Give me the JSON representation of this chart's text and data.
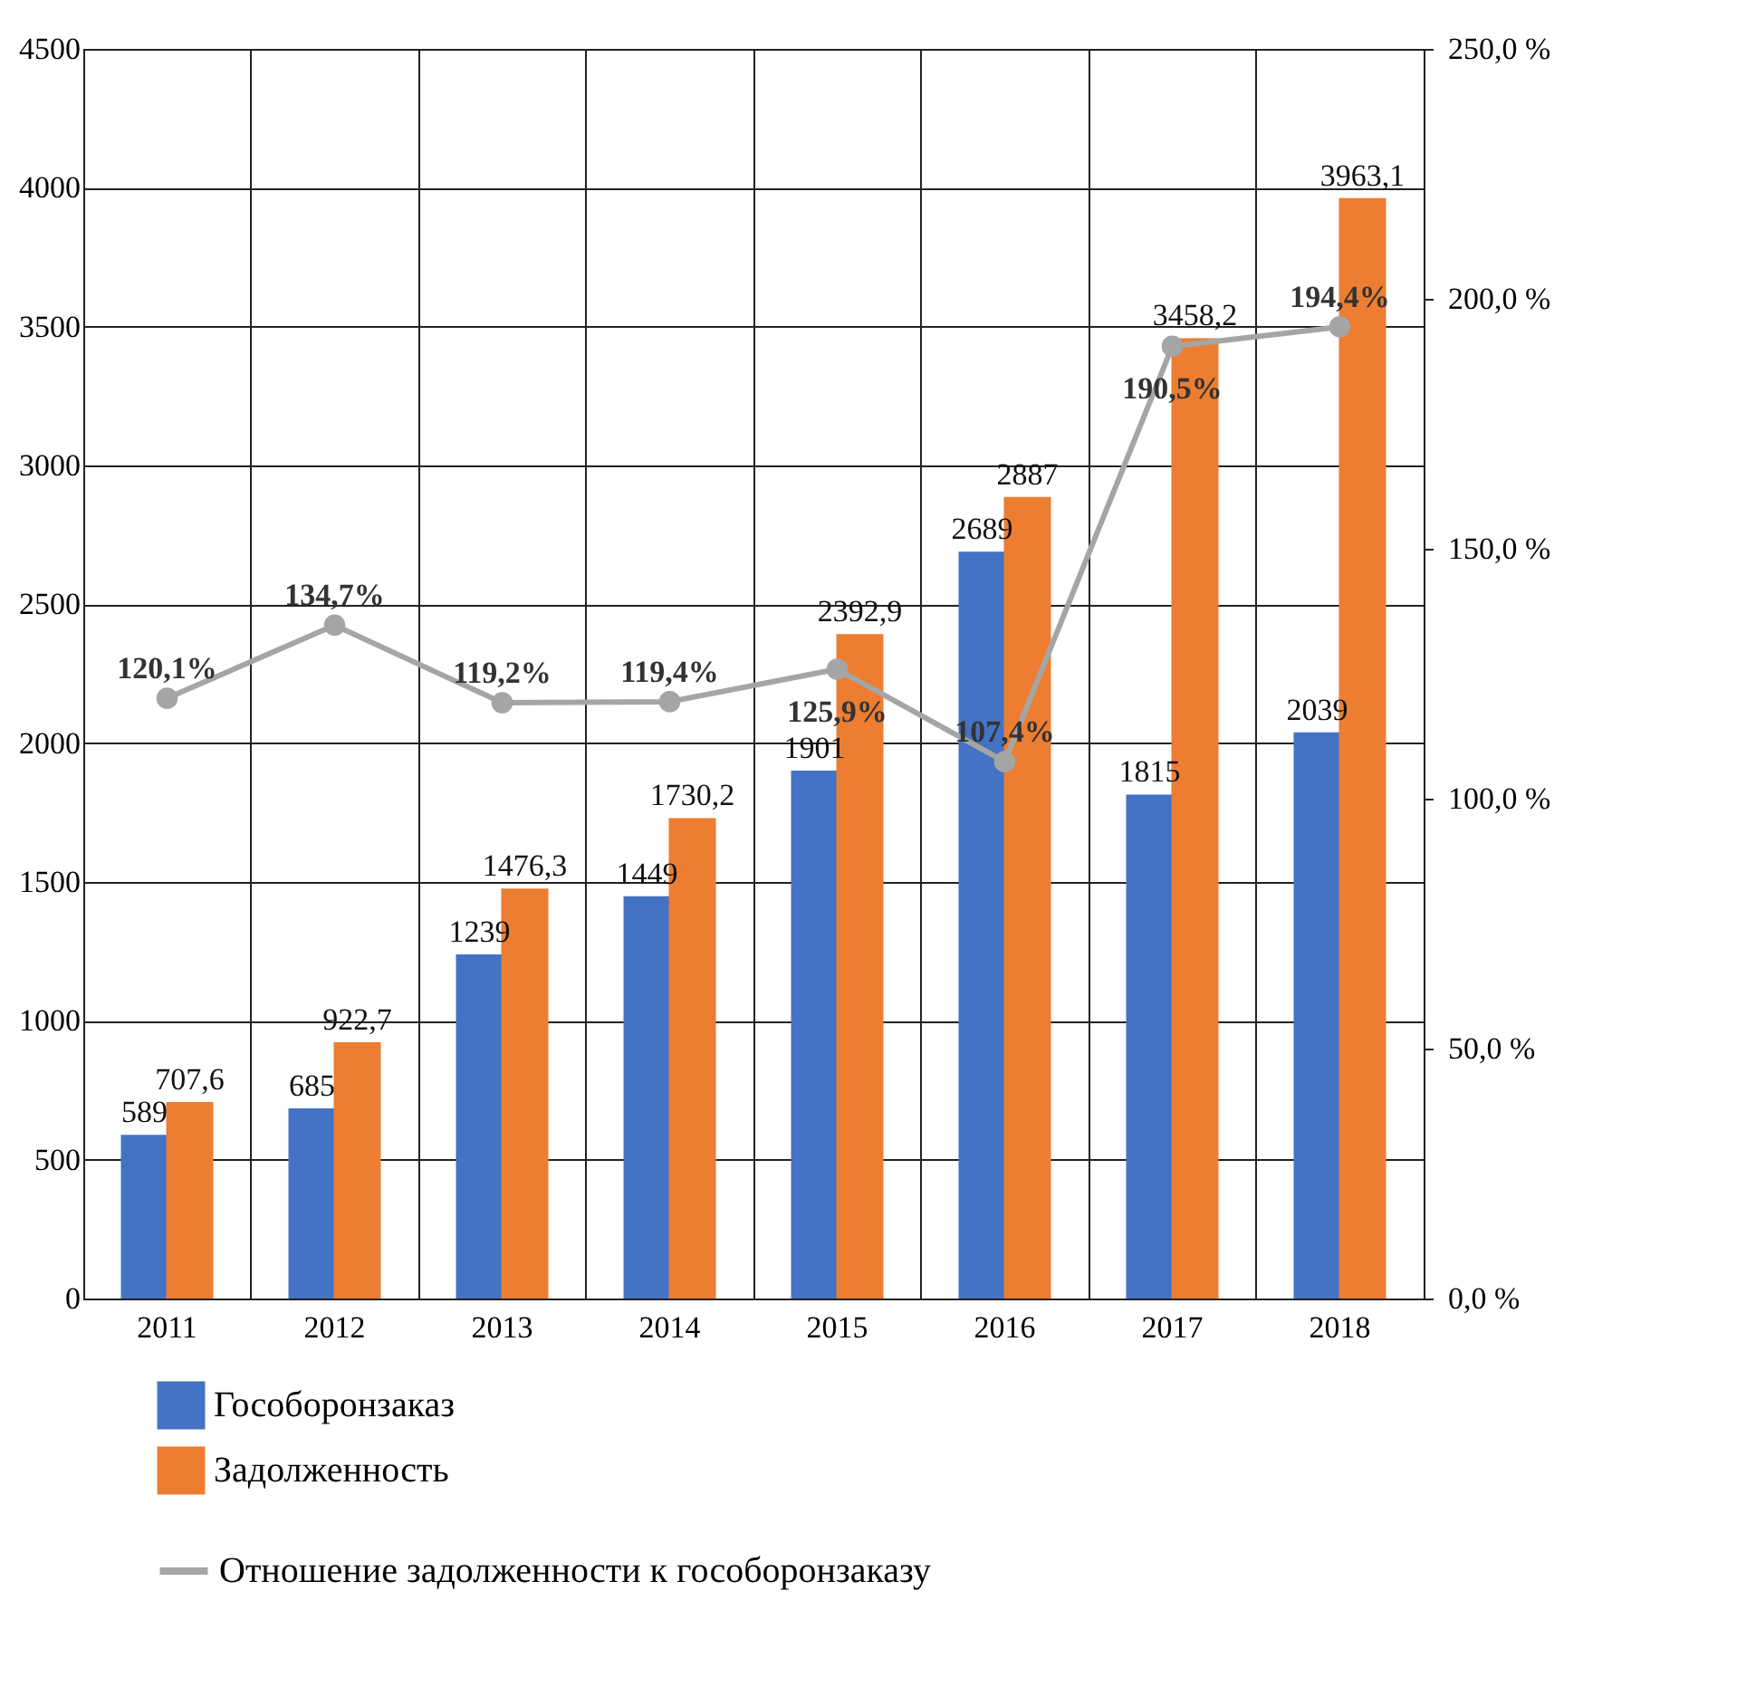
{
  "chart_data": {
    "type": "bar",
    "categories": [
      "2011",
      "2012",
      "2013",
      "2014",
      "2015",
      "2016",
      "2017",
      "2018"
    ],
    "series": [
      {
        "name": "Гособоронзаказ",
        "color": "#4472c4",
        "values": [
          589,
          685,
          1239,
          1449,
          1901,
          2689,
          1815,
          2039
        ],
        "value_labels": [
          "589",
          "685",
          "1239",
          "1449",
          "1901",
          "2689",
          "1815",
          "2039"
        ]
      },
      {
        "name": "Задолженность",
        "color": "#ed7d31",
        "values": [
          707.6,
          922.7,
          1476.3,
          1730.2,
          2392.9,
          2887,
          3458.2,
          3963.1
        ],
        "value_labels": [
          "707,6",
          "922,7",
          "1476,3",
          "1730,2",
          "2392,9",
          "2887",
          "3458,2",
          "3963,1"
        ]
      },
      {
        "name": "Отношение задолженности к гособоронзаказу",
        "type": "line",
        "axis": "y2",
        "color": "#a5a5a5",
        "values": [
          120.1,
          134.7,
          119.2,
          119.4,
          125.9,
          107.4,
          190.5,
          194.4
        ],
        "value_labels": [
          "120,1%",
          "134,7%",
          "119,2%",
          "119,4%",
          "125,9%",
          "107,4%",
          "190,5%",
          "194,4%"
        ]
      }
    ],
    "ylim": [
      0,
      4500
    ],
    "yticks": [
      0,
      500,
      1000,
      1500,
      2000,
      2500,
      3000,
      3500,
      4000,
      4500
    ],
    "y2lim": [
      0,
      250
    ],
    "y2ticks": [
      {
        "value": 0,
        "label": "0,0 %"
      },
      {
        "value": 50,
        "label": "50,0 %"
      },
      {
        "value": 100,
        "label": "100,0 %"
      },
      {
        "value": 150,
        "label": "150,0 %"
      },
      {
        "value": 200,
        "label": "200,0 %"
      },
      {
        "value": 250,
        "label": "250,0 %"
      }
    ],
    "grid": true,
    "legend": "bottom",
    "marker": "circle"
  }
}
